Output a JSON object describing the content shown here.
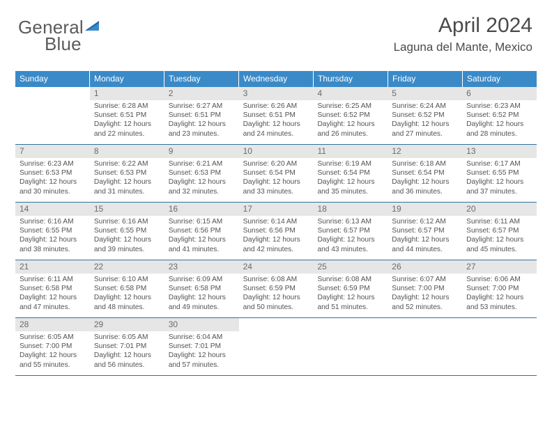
{
  "logo": {
    "text_a": "General",
    "text_b": "Blue"
  },
  "title": "April 2024",
  "location": "Laguna del Mante, Mexico",
  "colors": {
    "header_bg": "#3a8ac8",
    "header_text": "#ffffff",
    "day_num_bg": "#e6e6e6",
    "week_border": "#2f6fa0",
    "text": "#525252",
    "logo_blue": "#1f66a6"
  },
  "dow": [
    "Sunday",
    "Monday",
    "Tuesday",
    "Wednesday",
    "Thursday",
    "Friday",
    "Saturday"
  ],
  "weeks": [
    [
      {
        "n": "",
        "empty": true
      },
      {
        "n": "1",
        "sr": "6:28 AM",
        "ss": "6:51 PM",
        "dl": "12 hours and 22 minutes."
      },
      {
        "n": "2",
        "sr": "6:27 AM",
        "ss": "6:51 PM",
        "dl": "12 hours and 23 minutes."
      },
      {
        "n": "3",
        "sr": "6:26 AM",
        "ss": "6:51 PM",
        "dl": "12 hours and 24 minutes."
      },
      {
        "n": "4",
        "sr": "6:25 AM",
        "ss": "6:52 PM",
        "dl": "12 hours and 26 minutes."
      },
      {
        "n": "5",
        "sr": "6:24 AM",
        "ss": "6:52 PM",
        "dl": "12 hours and 27 minutes."
      },
      {
        "n": "6",
        "sr": "6:23 AM",
        "ss": "6:52 PM",
        "dl": "12 hours and 28 minutes."
      }
    ],
    [
      {
        "n": "7",
        "sr": "6:23 AM",
        "ss": "6:53 PM",
        "dl": "12 hours and 30 minutes."
      },
      {
        "n": "8",
        "sr": "6:22 AM",
        "ss": "6:53 PM",
        "dl": "12 hours and 31 minutes."
      },
      {
        "n": "9",
        "sr": "6:21 AM",
        "ss": "6:53 PM",
        "dl": "12 hours and 32 minutes."
      },
      {
        "n": "10",
        "sr": "6:20 AM",
        "ss": "6:54 PM",
        "dl": "12 hours and 33 minutes."
      },
      {
        "n": "11",
        "sr": "6:19 AM",
        "ss": "6:54 PM",
        "dl": "12 hours and 35 minutes."
      },
      {
        "n": "12",
        "sr": "6:18 AM",
        "ss": "6:54 PM",
        "dl": "12 hours and 36 minutes."
      },
      {
        "n": "13",
        "sr": "6:17 AM",
        "ss": "6:55 PM",
        "dl": "12 hours and 37 minutes."
      }
    ],
    [
      {
        "n": "14",
        "sr": "6:16 AM",
        "ss": "6:55 PM",
        "dl": "12 hours and 38 minutes."
      },
      {
        "n": "15",
        "sr": "6:16 AM",
        "ss": "6:55 PM",
        "dl": "12 hours and 39 minutes."
      },
      {
        "n": "16",
        "sr": "6:15 AM",
        "ss": "6:56 PM",
        "dl": "12 hours and 41 minutes."
      },
      {
        "n": "17",
        "sr": "6:14 AM",
        "ss": "6:56 PM",
        "dl": "12 hours and 42 minutes."
      },
      {
        "n": "18",
        "sr": "6:13 AM",
        "ss": "6:57 PM",
        "dl": "12 hours and 43 minutes."
      },
      {
        "n": "19",
        "sr": "6:12 AM",
        "ss": "6:57 PM",
        "dl": "12 hours and 44 minutes."
      },
      {
        "n": "20",
        "sr": "6:11 AM",
        "ss": "6:57 PM",
        "dl": "12 hours and 45 minutes."
      }
    ],
    [
      {
        "n": "21",
        "sr": "6:11 AM",
        "ss": "6:58 PM",
        "dl": "12 hours and 47 minutes."
      },
      {
        "n": "22",
        "sr": "6:10 AM",
        "ss": "6:58 PM",
        "dl": "12 hours and 48 minutes."
      },
      {
        "n": "23",
        "sr": "6:09 AM",
        "ss": "6:58 PM",
        "dl": "12 hours and 49 minutes."
      },
      {
        "n": "24",
        "sr": "6:08 AM",
        "ss": "6:59 PM",
        "dl": "12 hours and 50 minutes."
      },
      {
        "n": "25",
        "sr": "6:08 AM",
        "ss": "6:59 PM",
        "dl": "12 hours and 51 minutes."
      },
      {
        "n": "26",
        "sr": "6:07 AM",
        "ss": "7:00 PM",
        "dl": "12 hours and 52 minutes."
      },
      {
        "n": "27",
        "sr": "6:06 AM",
        "ss": "7:00 PM",
        "dl": "12 hours and 53 minutes."
      }
    ],
    [
      {
        "n": "28",
        "sr": "6:05 AM",
        "ss": "7:00 PM",
        "dl": "12 hours and 55 minutes."
      },
      {
        "n": "29",
        "sr": "6:05 AM",
        "ss": "7:01 PM",
        "dl": "12 hours and 56 minutes."
      },
      {
        "n": "30",
        "sr": "6:04 AM",
        "ss": "7:01 PM",
        "dl": "12 hours and 57 minutes."
      },
      {
        "n": "",
        "empty": true
      },
      {
        "n": "",
        "empty": true
      },
      {
        "n": "",
        "empty": true
      },
      {
        "n": "",
        "empty": true
      }
    ]
  ],
  "labels": {
    "sunrise": "Sunrise:",
    "sunset": "Sunset:",
    "daylight": "Daylight:"
  }
}
